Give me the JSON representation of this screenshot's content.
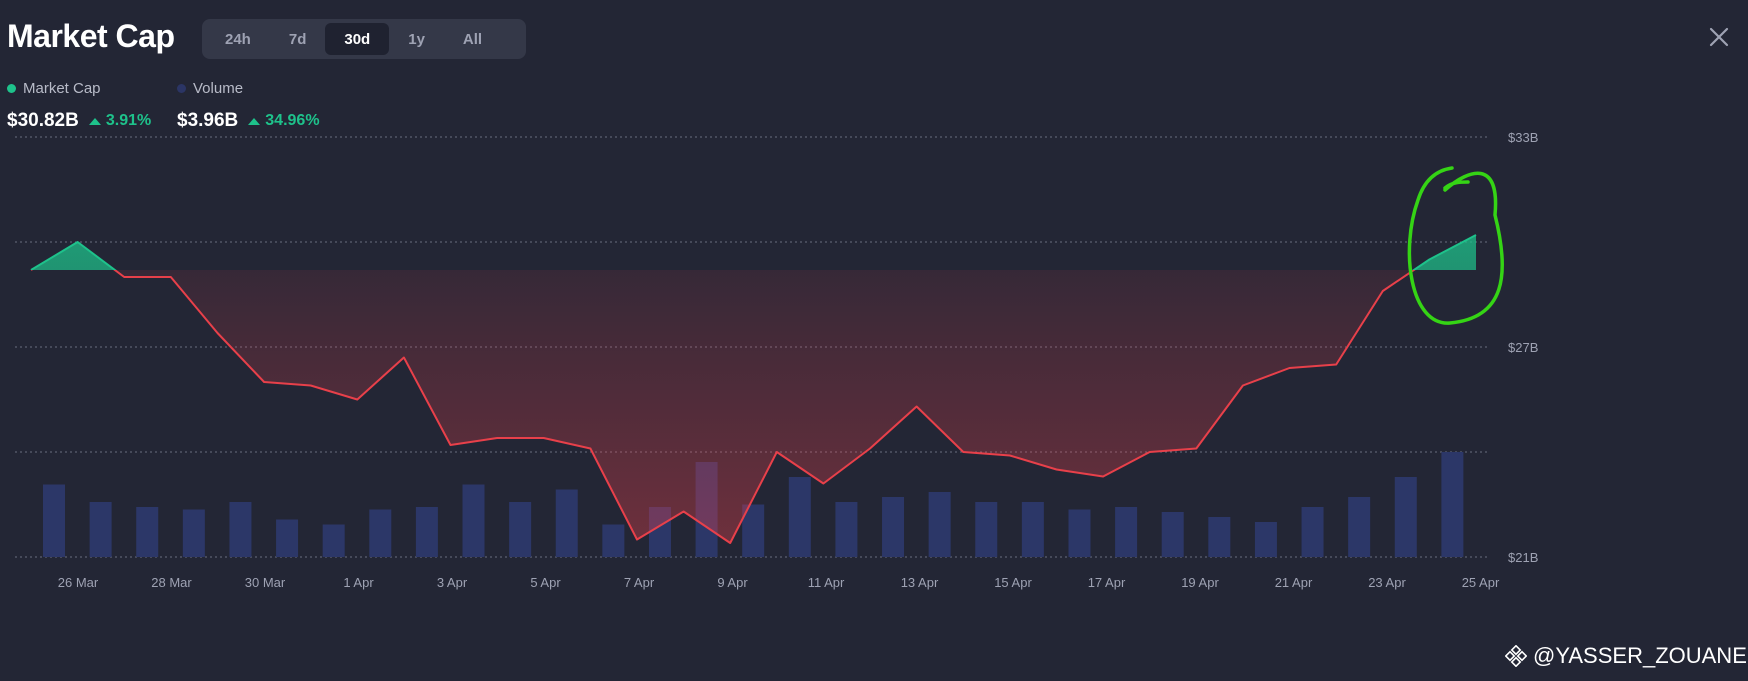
{
  "header": {
    "title": "Market Cap",
    "tabs": [
      {
        "label": "24h",
        "active": false
      },
      {
        "label": "7d",
        "active": false
      },
      {
        "label": "30d",
        "active": true
      },
      {
        "label": "1y",
        "active": false
      },
      {
        "label": "All",
        "active": false
      }
    ],
    "close_icon": "close-icon"
  },
  "legend": {
    "market_cap": {
      "label": "Market Cap",
      "color": "#1ec28b",
      "value": "$30.82B",
      "change": "3.91%"
    },
    "volume": {
      "label": "Volume",
      "color": "#2b3565",
      "value": "$3.96B",
      "change": "34.96%"
    }
  },
  "colors": {
    "background": "#232635",
    "line_down": "#e8404a",
    "line_up": "#1ec28b",
    "volume_bar": "#2c3768",
    "annotation": "#35d415"
  },
  "chart_data": {
    "type": "line",
    "y_tick_labels": [
      "$33B",
      "$27B",
      "$21B"
    ],
    "ylim": [
      21,
      33
    ],
    "x_tick_labels": [
      "26 Mar",
      "28 Mar",
      "30 Mar",
      "1 Apr",
      "3 Apr",
      "5 Apr",
      "7 Apr",
      "9 Apr",
      "11 Apr",
      "13 Apr",
      "15 Apr",
      "17 Apr",
      "19 Apr",
      "21 Apr",
      "23 Apr",
      "25 Apr"
    ],
    "grid": true,
    "baseline": 29.2,
    "series": [
      {
        "name": "Market Cap",
        "unit": "B",
        "values": [
          29.2,
          30.0,
          29.0,
          29.0,
          27.4,
          26.0,
          25.9,
          25.5,
          26.7,
          24.2,
          24.4,
          24.4,
          24.1,
          21.5,
          22.3,
          21.4,
          24.0,
          23.1,
          24.1,
          25.3,
          24.0,
          23.9,
          23.5,
          23.3,
          24.0,
          24.1,
          25.9,
          26.4,
          26.5,
          28.6,
          29.5,
          30.2
        ]
      },
      {
        "name": "Volume",
        "unit": "B",
        "values": [
          2.9,
          2.2,
          2.0,
          1.9,
          2.2,
          1.5,
          1.3,
          1.9,
          2.0,
          2.9,
          2.2,
          2.7,
          1.3,
          2.0,
          3.8,
          2.1,
          3.2,
          2.2,
          2.4,
          2.6,
          2.2,
          2.2,
          1.9,
          2.0,
          1.8,
          1.6,
          1.4,
          2.0,
          2.4,
          3.2,
          4.2
        ]
      }
    ]
  },
  "watermark": {
    "text": "@YASSER_ZOUANE"
  }
}
